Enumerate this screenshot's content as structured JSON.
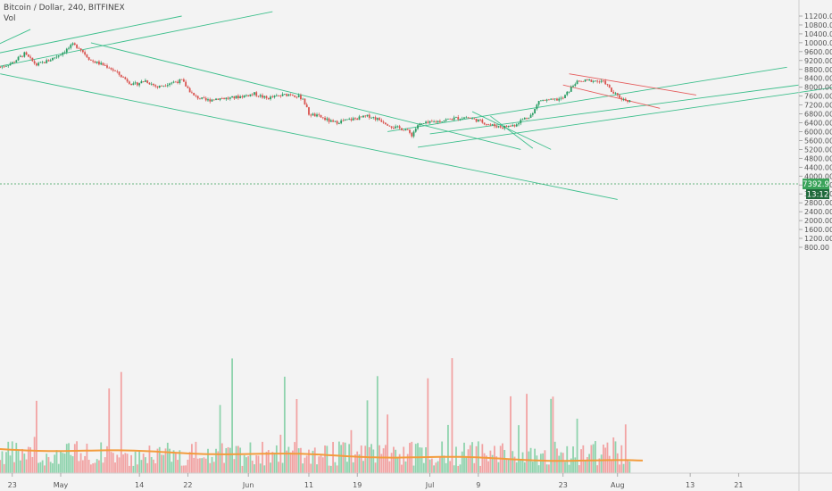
{
  "header": {
    "symbol_line": "Bitcoin / Dollar, 240, BITFINEX",
    "volume_label": "Vol"
  },
  "colors": {
    "background": "#f3f3f3",
    "up": "#2a9d64",
    "down": "#d9534f",
    "trendline_green": "#3dbf8c",
    "trendline_red": "#e55b5b",
    "price_line": "#3aa35a",
    "volume_ma": "#f39c3d",
    "volume_up": "#8fd3ad",
    "volume_down": "#f2a3a3"
  },
  "chart_data": {
    "type": "candlestick",
    "y_axis": {
      "min": 800,
      "max": 11600,
      "ticks": [
        "11200.00",
        "10800.00",
        "10400.00",
        "10000.00",
        "9600.00",
        "9200.00",
        "8800.00",
        "8400.00",
        "8000.00",
        "7600.00",
        "7200.00",
        "6800.00",
        "6400.00",
        "6000.00",
        "5600.00",
        "5200.00",
        "4800.00",
        "4400.00",
        "4000.00",
        "3600.00",
        "3200.00",
        "2800.00",
        "2400.00",
        "2000.00",
        "1600.00",
        "1200.00",
        "800.00"
      ],
      "tick_values": [
        11200,
        10800,
        10400,
        10000,
        9600,
        9200,
        8800,
        8400,
        8000,
        7600,
        7200,
        6800,
        6400,
        6000,
        5600,
        5200,
        4800,
        4400,
        4000,
        3600,
        3200,
        2800,
        2400,
        2000,
        1600,
        1200,
        800
      ]
    },
    "x_axis": {
      "labels": [
        "23",
        "May",
        "14",
        "22",
        "Jun",
        "11",
        "19",
        "Jul",
        "9",
        "23",
        "Aug",
        "13",
        "21"
      ],
      "label_days": [
        -8,
        0,
        13,
        21,
        31,
        41,
        49,
        61,
        69,
        83,
        92,
        104,
        112
      ]
    },
    "last_price": "7392.9",
    "last_price_value": 7392.9,
    "countdown": "13:12",
    "price_path": [
      [
        -10,
        8900
      ],
      [
        -8,
        9100
      ],
      [
        -6,
        9500
      ],
      [
        -4,
        9000
      ],
      [
        -2,
        9200
      ],
      [
        0,
        9500
      ],
      [
        2,
        9900
      ],
      [
        3,
        9800
      ],
      [
        5,
        9200
      ],
      [
        8,
        8900
      ],
      [
        10,
        8500
      ],
      [
        12,
        8100
      ],
      [
        14,
        8300
      ],
      [
        16,
        8000
      ],
      [
        18,
        8200
      ],
      [
        20,
        8300
      ],
      [
        22,
        7600
      ],
      [
        24,
        7400
      ],
      [
        26,
        7500
      ],
      [
        28,
        7500
      ],
      [
        30,
        7600
      ],
      [
        32,
        7700
      ],
      [
        34,
        7500
      ],
      [
        36,
        7600
      ],
      [
        38,
        7700
      ],
      [
        40,
        7500
      ],
      [
        41,
        6800
      ],
      [
        43,
        6650
      ],
      [
        45,
        6400
      ],
      [
        47,
        6500
      ],
      [
        49,
        6600
      ],
      [
        51,
        6700
      ],
      [
        53,
        6500
      ],
      [
        55,
        6200
      ],
      [
        57,
        6100
      ],
      [
        58,
        5850
      ],
      [
        59,
        6300
      ],
      [
        61,
        6400
      ],
      [
        63,
        6500
      ],
      [
        65,
        6600
      ],
      [
        67,
        6650
      ],
      [
        69,
        6500
      ],
      [
        71,
        6300
      ],
      [
        73,
        6200
      ],
      [
        75,
        6300
      ],
      [
        76,
        6500
      ],
      [
        78,
        6800
      ],
      [
        79,
        7400
      ],
      [
        81,
        7400
      ],
      [
        83,
        7500
      ],
      [
        85,
        8200
      ],
      [
        87,
        8300
      ],
      [
        88,
        8300
      ],
      [
        90,
        8200
      ],
      [
        91,
        7800
      ],
      [
        92,
        7600
      ],
      [
        93,
        7450
      ],
      [
        94,
        7392
      ]
    ]
  },
  "drawings": {
    "green_lines": [
      [
        [
          -20,
          9000
        ],
        [
          20,
          11200
        ]
      ],
      [
        [
          -20,
          8700
        ],
        [
          -5,
          10600
        ]
      ],
      [
        [
          -20,
          8400
        ],
        [
          35,
          11400
        ]
      ],
      [
        [
          -10,
          8600
        ],
        [
          92,
          2950
        ]
      ],
      [
        [
          5,
          10000
        ],
        [
          76,
          5200
        ]
      ],
      [
        [
          54,
          6000
        ],
        [
          120,
          8900
        ]
      ],
      [
        [
          61,
          5900
        ],
        [
          122,
          8100
        ]
      ],
      [
        [
          59,
          5300
        ],
        [
          128,
          8000
        ]
      ],
      [
        [
          71,
          6700
        ],
        [
          78,
          5250
        ]
      ],
      [
        [
          68,
          6900
        ],
        [
          81,
          5200
        ]
      ]
    ],
    "red_lines": [
      [
        [
          84,
          8600
        ],
        [
          105,
          7650
        ]
      ],
      [
        [
          83,
          8100
        ],
        [
          99,
          7050
        ]
      ]
    ]
  }
}
